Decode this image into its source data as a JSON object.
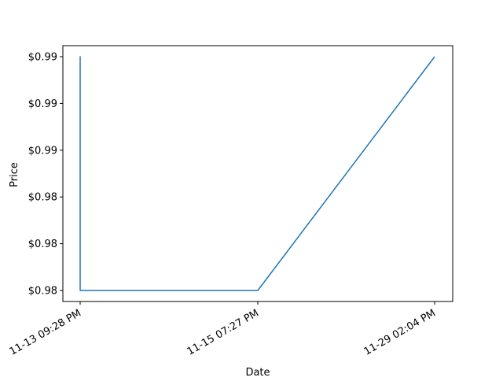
{
  "chart_data": {
    "type": "line",
    "title": "",
    "xlabel": "Date",
    "ylabel": "Price",
    "x_ticks": [
      "11-13 09:28 PM",
      "11-15 07:27 PM",
      "11-29 02:04 PM"
    ],
    "y_ticks": [
      "$0.98",
      "$0.98",
      "$0.98",
      "$0.99",
      "$0.99",
      "$0.99"
    ],
    "series": [
      {
        "color": "#1f77b4",
        "points": [
          {
            "x": "11-13 09:28 PM",
            "y": 0.98
          },
          {
            "x": "11-13 09:28 PM",
            "y": 0.99
          },
          {
            "x": "11-13 09:28 PM",
            "y": 0.98
          },
          {
            "x": "11-15 07:27 PM",
            "y": 0.98
          },
          {
            "x": "11-29 02:04 PM",
            "y": 0.99
          }
        ]
      }
    ],
    "ylim": [
      0.98,
      0.99
    ],
    "grid": false,
    "legend": "none"
  }
}
